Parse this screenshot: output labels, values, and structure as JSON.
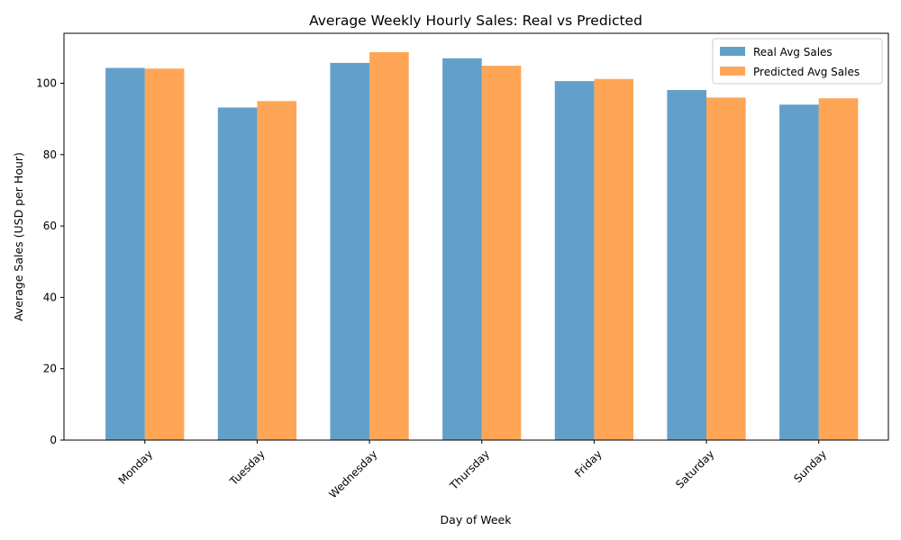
{
  "chart_data": {
    "type": "bar",
    "title": "Average Weekly Hourly Sales: Real vs Predicted",
    "xlabel": "Day of Week",
    "ylabel": "Average Sales (USD per Hour)",
    "categories": [
      "Monday",
      "Tuesday",
      "Wednesday",
      "Thursday",
      "Friday",
      "Saturday",
      "Sunday"
    ],
    "series": [
      {
        "name": "Real Avg Sales",
        "color": "#1f77b4",
        "values": [
          104.3,
          93.2,
          105.7,
          107.0,
          100.6,
          98.1,
          94.0
        ]
      },
      {
        "name": "Predicted Avg Sales",
        "color": "#ff7f0e",
        "values": [
          104.1,
          95.0,
          108.7,
          104.9,
          101.2,
          96.0,
          95.8
        ]
      }
    ],
    "ylim": [
      0,
      114
    ],
    "yticks": [
      0,
      20,
      40,
      60,
      80,
      100
    ],
    "bar_opacity": 0.7,
    "grid": false,
    "legend_position": "top-right",
    "xtick_rotation": 45
  }
}
